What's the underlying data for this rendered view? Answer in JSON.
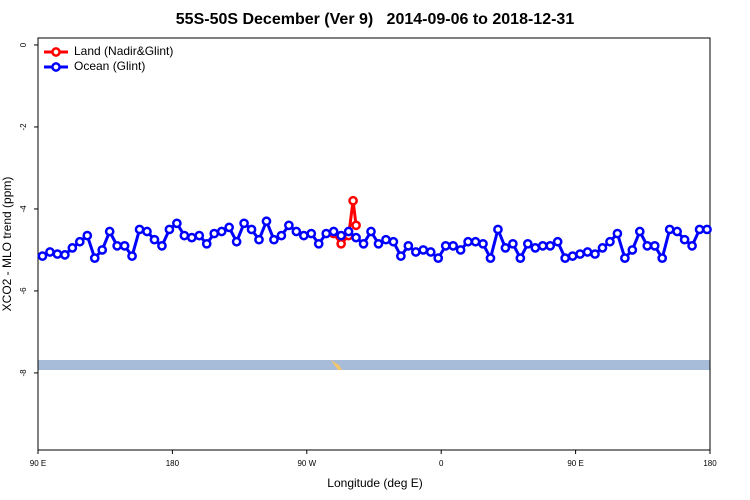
{
  "chart_data": {
    "type": "line",
    "title": "55S-50S December (Ver 9)   2014-09-06 to 2018-12-31",
    "xlabel": "Longitude (deg E)",
    "ylabel": "XCO2 - MLO trend (ppm)",
    "xlim": [
      90,
      540
    ],
    "ylim": [
      -9.88,
      0.17
    ],
    "xticks": [
      {
        "value": 90,
        "label": "90 E"
      },
      {
        "value": 180,
        "label": "180"
      },
      {
        "value": 270,
        "label": "90 W"
      },
      {
        "value": 360,
        "label": "0"
      },
      {
        "value": 450,
        "label": "90 E"
      },
      {
        "value": 540,
        "label": "180"
      }
    ],
    "yticks": [
      -8,
      -6,
      -4,
      -2,
      0
    ],
    "legend": "top-left",
    "series": [
      {
        "name": "Land (Nadir&Glint)",
        "color": "#ff0000",
        "x": [
          288,
          293,
          298,
          301,
          303
        ],
        "values": [
          -4.6,
          -4.85,
          -4.65,
          -3.8,
          -4.4
        ]
      },
      {
        "name": "Ocean (Glint)",
        "color": "#0000ff",
        "x": [
          93,
          98,
          103,
          108,
          113,
          118,
          123,
          128,
          133,
          138,
          143,
          148,
          153,
          158,
          163,
          168,
          173,
          178,
          183,
          188,
          193,
          198,
          203,
          208,
          213,
          218,
          223,
          228,
          233,
          238,
          243,
          248,
          253,
          258,
          263,
          268,
          273,
          278,
          283,
          288,
          293,
          298,
          303,
          308,
          313,
          318,
          323,
          328,
          333,
          338,
          343,
          348,
          353,
          358,
          363,
          368,
          373,
          378,
          383,
          388,
          393,
          398,
          403,
          408,
          413,
          418,
          423,
          428,
          433,
          438,
          443,
          448,
          453,
          458,
          463,
          468,
          473,
          478,
          483,
          488,
          493,
          498,
          503,
          508,
          513,
          518,
          523,
          528,
          533,
          538
        ],
        "values": [
          -5.15,
          -5.05,
          -5.1,
          -5.12,
          -4.95,
          -4.8,
          -4.65,
          -5.2,
          -5.0,
          -4.55,
          -4.9,
          -4.9,
          -5.15,
          -4.5,
          -4.55,
          -4.75,
          -4.9,
          -4.5,
          -4.35,
          -4.65,
          -4.7,
          -4.65,
          -4.85,
          -4.6,
          -4.55,
          -4.45,
          -4.8,
          -4.35,
          -4.5,
          -4.75,
          -4.3,
          -4.75,
          -4.65,
          -4.4,
          -4.55,
          -4.65,
          -4.6,
          -4.85,
          -4.6,
          -4.55,
          -4.65,
          -4.55,
          -4.7,
          -4.85,
          -4.55,
          -4.85,
          -4.75,
          -4.8,
          -5.15,
          -4.9,
          -5.05,
          -5.0,
          -5.05,
          -5.2,
          -4.9,
          -4.9,
          -5.0,
          -4.8,
          -4.8,
          -4.85,
          -5.2,
          -4.5,
          -4.95,
          -4.85,
          -5.2,
          -4.85,
          -4.95,
          -4.9,
          -4.9,
          -4.8,
          -5.2,
          -5.15,
          -5.1,
          -5.05,
          -5.1,
          -4.95,
          -4.8,
          -4.6,
          -5.2,
          -5.0,
          -4.55,
          -4.9,
          -4.9,
          -5.2,
          -4.5,
          -4.55,
          -4.75,
          -4.9,
          -4.5,
          -4.5
        ]
      }
    ]
  }
}
